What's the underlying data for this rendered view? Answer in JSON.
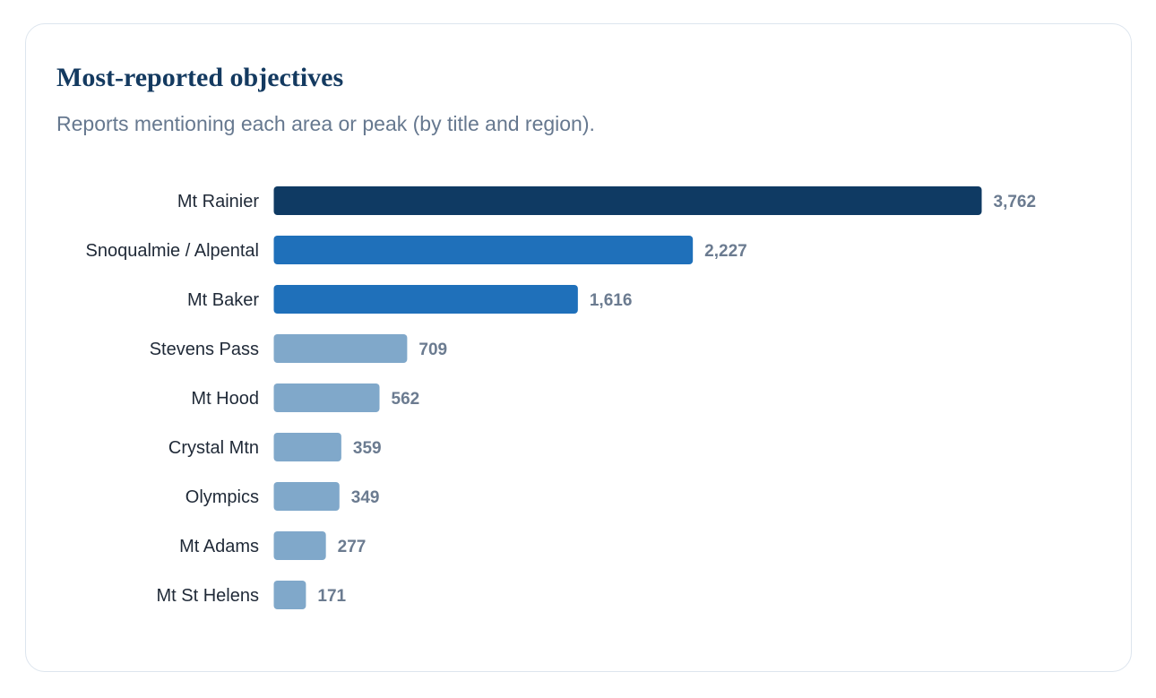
{
  "title": "Most-reported objectives",
  "subtitle": "Reports mentioning each area or peak (by title and region).",
  "colors": {
    "top": "#0f3a63",
    "second_tier": "#1f70ba",
    "rest": "#80a8ca",
    "title": "#143a60",
    "subtitle": "#66788f",
    "value_label": "#6b7b90",
    "category_label": "#1f2937"
  },
  "chart_data": {
    "type": "bar",
    "orientation": "horizontal",
    "categories": [
      "Mt Rainier",
      "Snoqualmie / Alpental",
      "Mt Baker",
      "Stevens Pass",
      "Mt Hood",
      "Crystal Mtn",
      "Olympics",
      "Mt Adams",
      "Mt St Helens"
    ],
    "values": [
      3762,
      2227,
      1616,
      709,
      562,
      359,
      349,
      277,
      171
    ],
    "value_labels": [
      "3,762",
      "2,227",
      "1,616",
      "709",
      "562",
      "359",
      "349",
      "277",
      "171"
    ],
    "grid": false,
    "legend": "none"
  }
}
